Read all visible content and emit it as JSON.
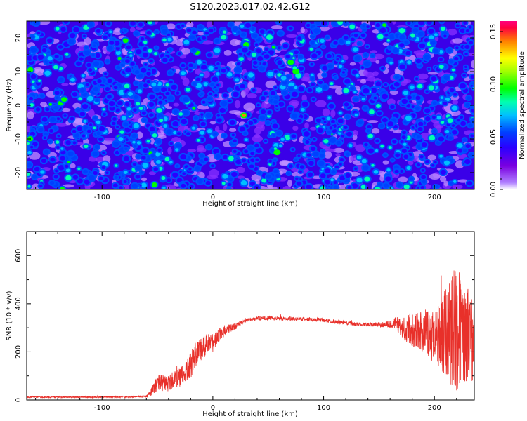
{
  "title": "S120.2023.017.02.42.G12",
  "colors": {
    "snr_line": "#e8302a",
    "axes": "#000000",
    "colormap": [
      "#ffffff",
      "#7a00e0",
      "#0000ff",
      "#00c8ff",
      "#00ff80",
      "#80ff00",
      "#ffff00",
      "#ff8000",
      "#ff0060"
    ]
  },
  "chart_data": [
    {
      "type": "heatmap",
      "title": "S120.2023.017.02.42.G12",
      "xlabel": "Height of straight line (km)",
      "ylabel": "Frequency (Hz)",
      "xlim": [
        -168,
        236
      ],
      "ylim": [
        -25,
        25
      ],
      "xticks": [
        -100,
        0,
        100,
        200
      ],
      "xticklabels": [
        "-100",
        "0",
        "100",
        "200"
      ],
      "yticks": [
        -20,
        -10,
        0,
        10,
        20
      ],
      "yticklabels": [
        "-20",
        "-10",
        "0",
        "10",
        "20"
      ],
      "colorbar": {
        "label": "Normalized spectral amplitude",
        "range": [
          0.0,
          0.16
        ],
        "ticks": [
          0.0,
          0.05,
          0.1,
          0.15
        ],
        "ticklabels": [
          "0.00",
          "0.05",
          "0.10",
          "0.15"
        ]
      },
      "description_of_values": "noise-like field, mostly 0.02-0.06 with sparse peaks up to ~0.14 (maximum near x=28, y=-3)",
      "peaks": [
        {
          "x": 28,
          "y": -3,
          "value": 0.14
        },
        {
          "x": 75,
          "y": 10,
          "value": 0.11
        },
        {
          "x": 58,
          "y": -14,
          "value": 0.1
        }
      ]
    },
    {
      "type": "line",
      "xlabel": "Height of straight line (km)",
      "ylabel": "SNR (10 * v/v)",
      "xlim": [
        -168,
        236
      ],
      "ylim": [
        0,
        700
      ],
      "xticks": [
        -100,
        0,
        100,
        200
      ],
      "xticklabels": [
        "-100",
        "0",
        "100",
        "200"
      ],
      "yticks": [
        0,
        200,
        400,
        600
      ],
      "yticklabels": [
        "0",
        "200",
        "400",
        "600"
      ],
      "series": [
        {
          "x": [
            -168,
            -140,
            -110,
            -80,
            -60,
            -55,
            -50,
            -45,
            -40,
            -35,
            -30,
            -25,
            -20,
            -15,
            -10,
            -5,
            0,
            5,
            10,
            15,
            20,
            25,
            30,
            40,
            50,
            60,
            70,
            80,
            90,
            100,
            110,
            120,
            130,
            140,
            150,
            160,
            165,
            170,
            180,
            190,
            200,
            205,
            210,
            215,
            220,
            225,
            230,
            236
          ],
          "y": [
            12,
            12,
            12,
            13,
            15,
            35,
            75,
            70,
            65,
            85,
            90,
            115,
            140,
            200,
            210,
            230,
            240,
            270,
            285,
            295,
            305,
            318,
            330,
            340,
            340,
            338,
            338,
            337,
            335,
            332,
            325,
            320,
            315,
            314,
            313,
            315,
            320,
            300,
            295,
            280,
            275,
            270,
            280,
            290,
            300,
            290,
            280,
            240
          ],
          "noise": [
            3,
            3,
            3,
            3,
            4,
            20,
            35,
            35,
            35,
            40,
            40,
            45,
            55,
            60,
            50,
            45,
            40,
            30,
            25,
            20,
            15,
            10,
            8,
            8,
            8,
            8,
            8,
            8,
            8,
            8,
            8,
            8,
            8,
            8,
            10,
            15,
            25,
            45,
            70,
            90,
            120,
            160,
            200,
            240,
            260,
            220,
            200,
            180
          ]
        }
      ]
    }
  ]
}
